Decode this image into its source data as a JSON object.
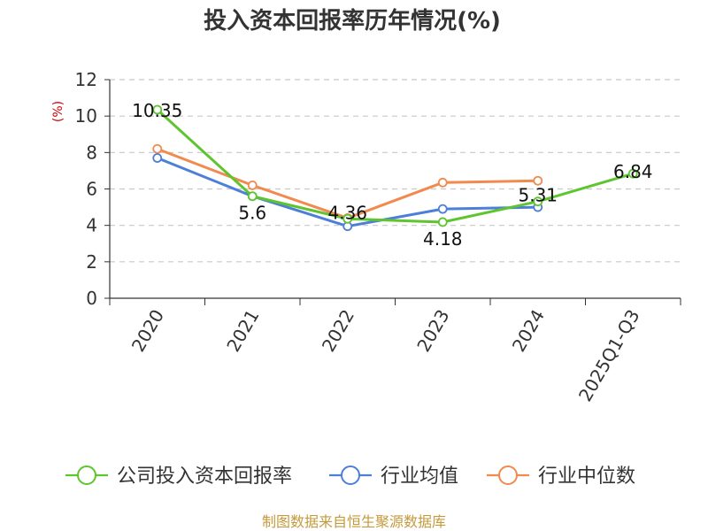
{
  "chart_data": {
    "type": "line",
    "title": "投入资本回报率历年情况(%)",
    "ylabel": "(%)",
    "categories": [
      "2020",
      "2021",
      "2022",
      "2023",
      "2024",
      "2025Q1-Q3"
    ],
    "ylim": [
      0,
      12
    ],
    "yticks": [
      0,
      2,
      4,
      6,
      8,
      10,
      12
    ],
    "grid": true,
    "legend_position": "bottom",
    "series": [
      {
        "name": "公司投入资本回报率",
        "color": "#5ec52e",
        "values": [
          10.35,
          5.6,
          4.36,
          4.18,
          5.31,
          6.84
        ],
        "labels": true
      },
      {
        "name": "行业均值",
        "color": "#4d7fd8",
        "values": [
          7.7,
          5.6,
          3.95,
          4.9,
          5.0,
          null
        ],
        "labels": false
      },
      {
        "name": "行业中位数",
        "color": "#f2894f",
        "values": [
          8.2,
          6.2,
          4.4,
          6.35,
          6.45,
          null
        ],
        "labels": false
      }
    ],
    "source": "制图数据来自恒生聚源数据库"
  }
}
